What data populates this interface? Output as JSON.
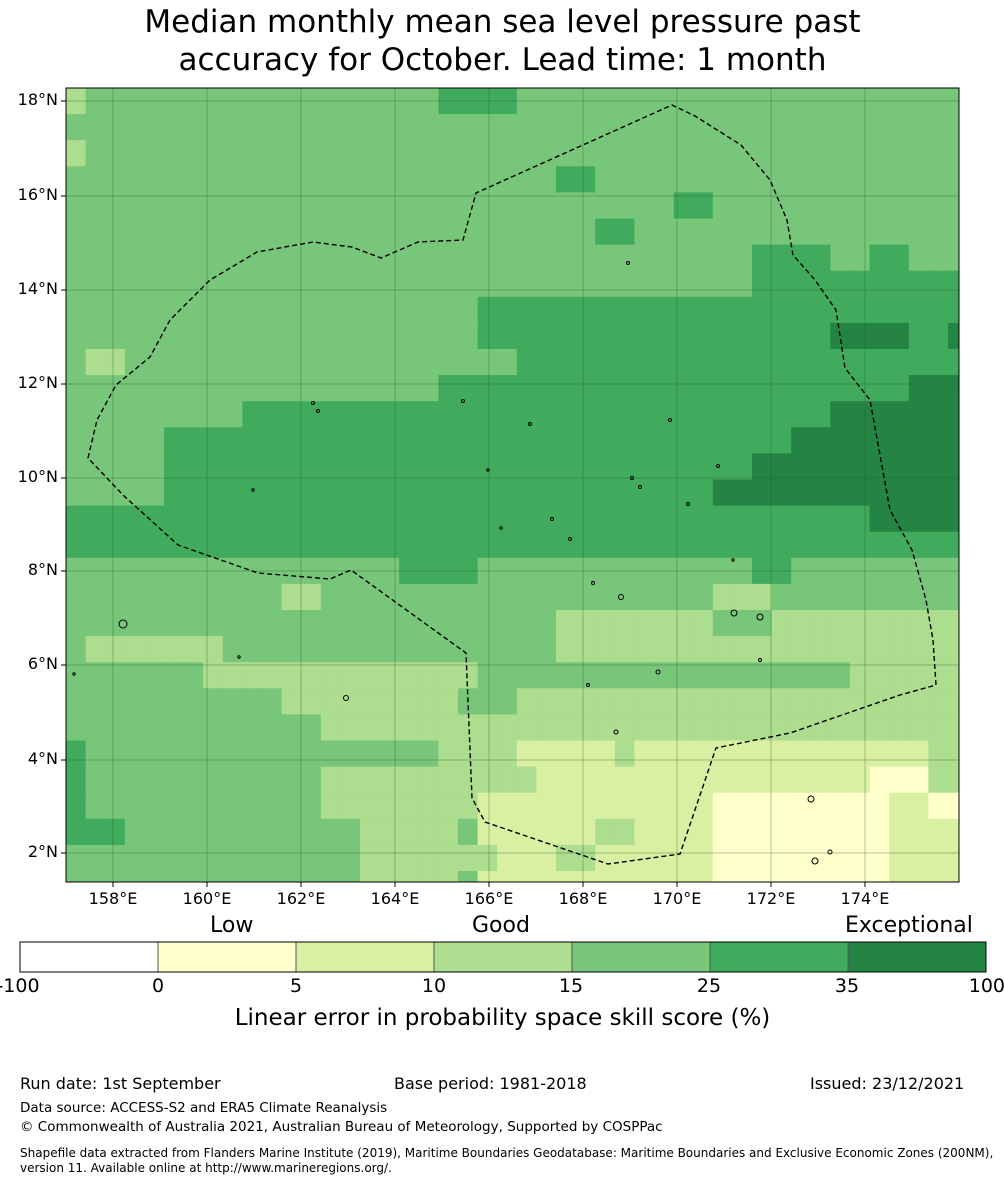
{
  "title": {
    "line1": "Median monthly mean sea level pressure past",
    "line2": "accuracy for October. Lead time: 1 month"
  },
  "map": {
    "lat_labels": [
      "18°N",
      "16°N",
      "14°N",
      "12°N",
      "10°N",
      "8°N",
      "6°N",
      "4°N",
      "2°N"
    ],
    "lon_labels": [
      "158°E",
      "160°E",
      "162°E",
      "164°E",
      "166°E",
      "168°E",
      "170°E",
      "172°E",
      "174°E"
    ],
    "skill_categories_colors": {
      "below_0": "#ffffff",
      "0_5": "#ffffcc",
      "5_10": "#d9f0a3",
      "10_15": "#addd8e",
      "15_25": "#78c679",
      "25_35": "#41ab5d",
      "35_100": "#238443"
    },
    "boundary_line": "dashed black"
  },
  "colorbar": {
    "words": {
      "low": "Low",
      "good": "Good",
      "exceptional": "Exceptional"
    },
    "ticks": [
      "-100",
      "0",
      "5",
      "10",
      "15",
      "25",
      "35",
      "100"
    ],
    "colors": [
      "#ffffff",
      "#ffffcc",
      "#d9f0a3",
      "#addd8e",
      "#78c679",
      "#41ab5d",
      "#238443"
    ],
    "label": "Linear error in probability space skill score (%)"
  },
  "footer": {
    "run_date": "Run date: 1st September",
    "base_period": "Base period: 1981-2018",
    "issued": "Issued: 23/12/2021",
    "data_source": "Data source: ACCESS-S2 and ERA5 Climate Reanalysis",
    "copyright": "© Commonwealth of Australia 2021, Australian Bureau of Meteorology, Supported by COSPPac",
    "shapefile_line1": "Shapefile data extracted from Flanders Marine Institute (2019), Maritime Boundaries Geodatabase: Maritime Boundaries and Exclusive Economic Zones (200NM),",
    "shapefile_line2": "version 11. Available online at http://www.marineregions.org/."
  }
}
